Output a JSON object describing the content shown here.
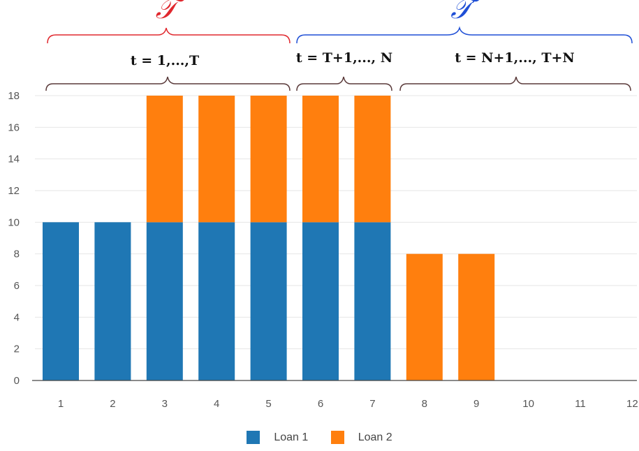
{
  "chart_data": {
    "type": "bar",
    "stacked": true,
    "categories": [
      "1",
      "2",
      "3",
      "4",
      "5",
      "6",
      "7",
      "8",
      "9",
      "10",
      "11",
      "12"
    ],
    "series": [
      {
        "name": "Loan 1",
        "color": "#1f77b4",
        "values": [
          10,
          10,
          10,
          10,
          10,
          10,
          10,
          0,
          0,
          0,
          0,
          0
        ]
      },
      {
        "name": "Loan 2",
        "color": "#ff7f0e",
        "values": [
          0,
          0,
          8,
          8,
          8,
          8,
          8,
          8,
          8,
          0,
          0,
          0
        ]
      }
    ],
    "y_ticks": [
      "0",
      "2",
      "4",
      "6",
      "8",
      "10",
      "12",
      "14",
      "16",
      "18"
    ],
    "ylim": [
      0,
      18
    ],
    "grid": true,
    "legend": "bottom",
    "annotations": {
      "set_T": {
        "label": "𝒯",
        "color": "#e0282e"
      },
      "set_T_prime": {
        "label": "𝒯′",
        "color": "#1f4fd6"
      },
      "range_1": "t = 1,...,T",
      "range_2": "t = T+1,..., N",
      "range_3": "t = N+1,..., T+N"
    }
  }
}
